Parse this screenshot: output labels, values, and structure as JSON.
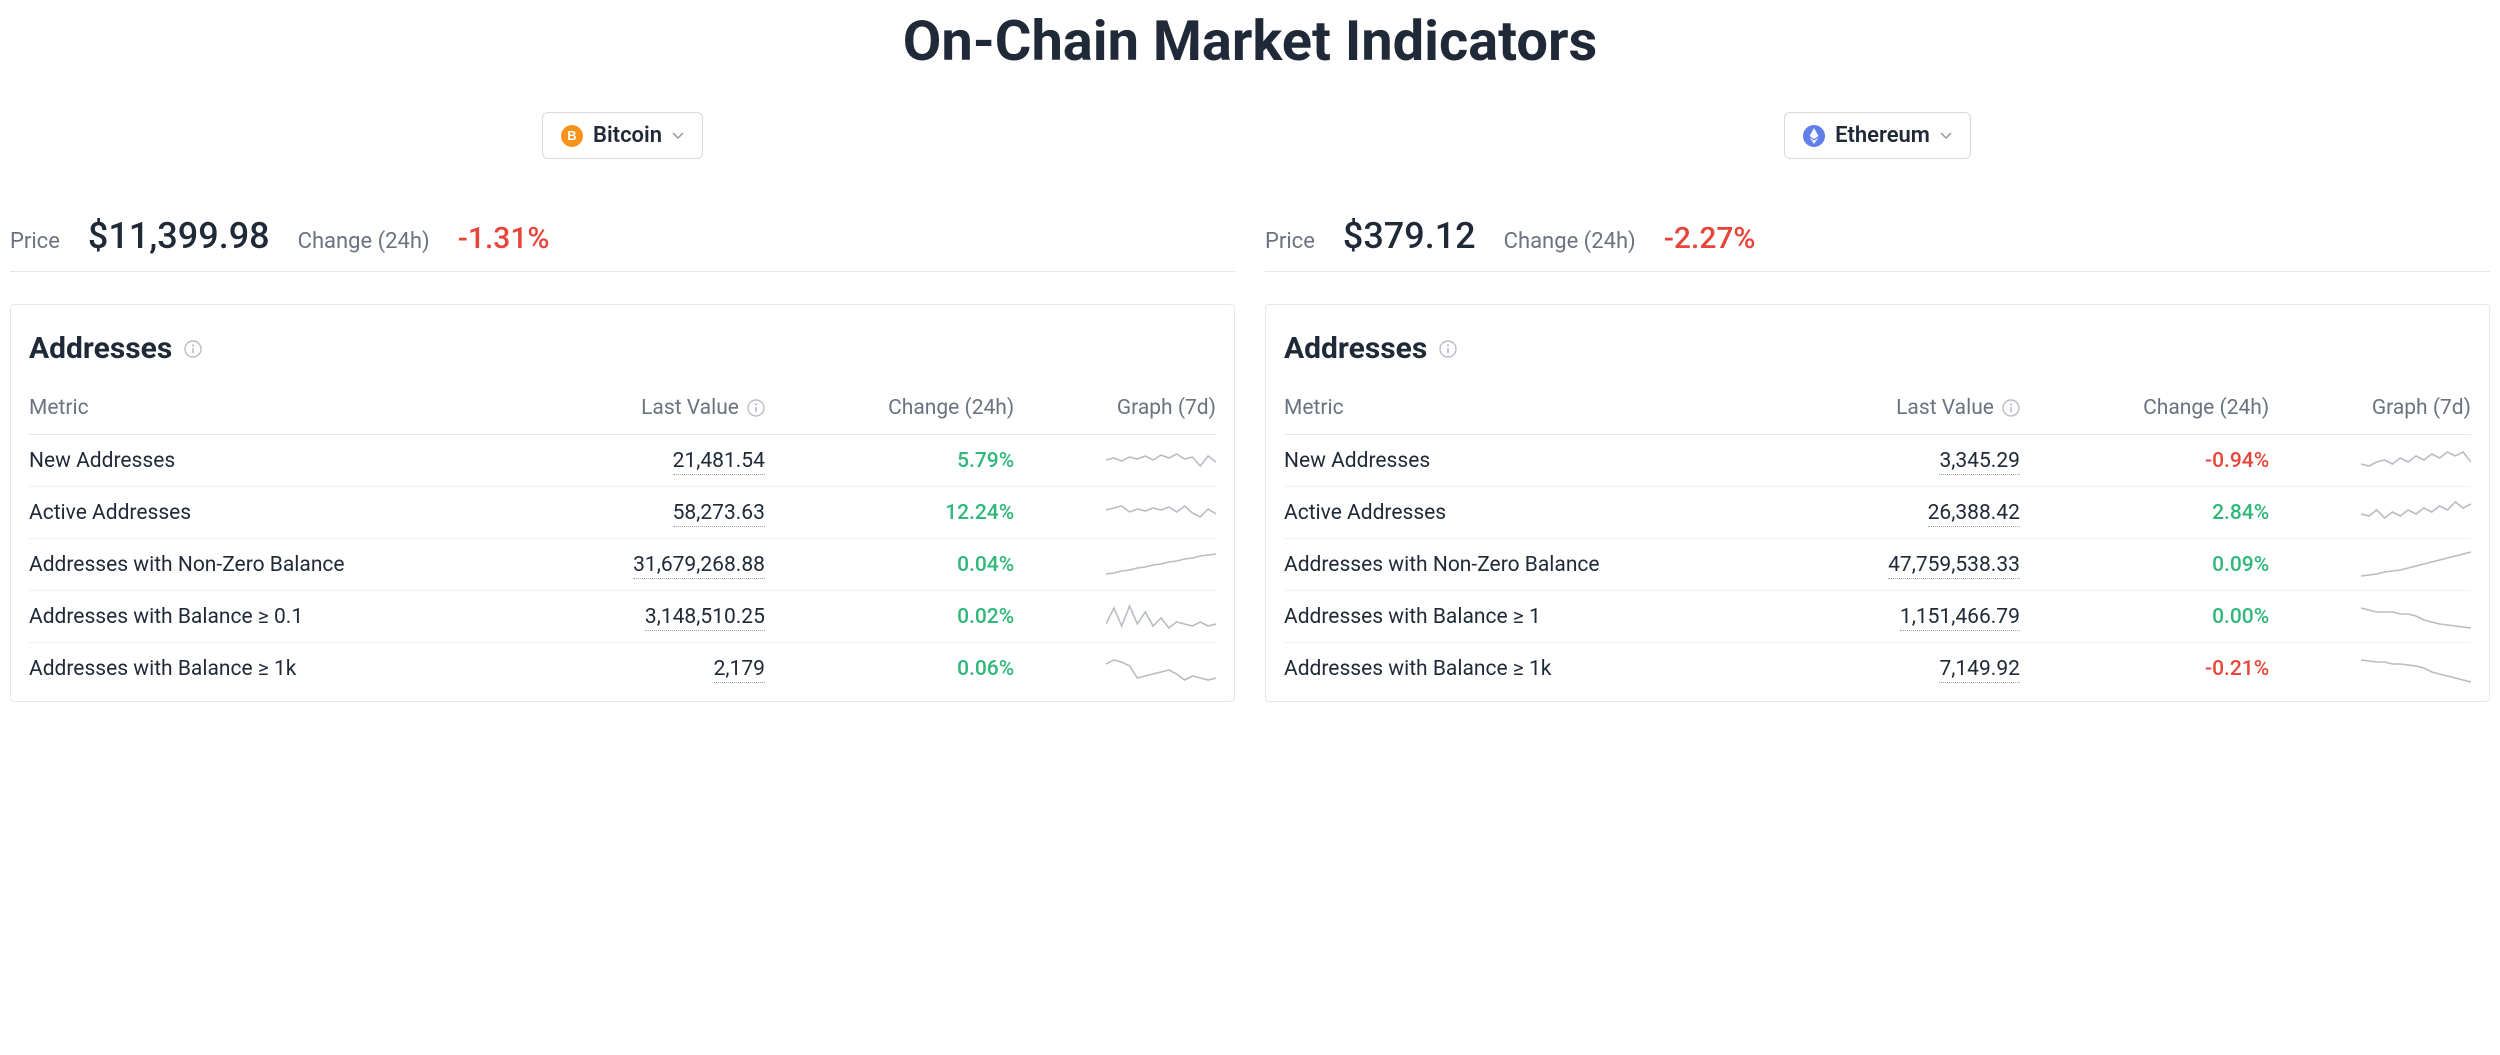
{
  "title": "On-Chain Market Indicators",
  "colors": {
    "positive": "#2fb87a",
    "negative": "#e7443a",
    "text_primary": "#1f2937",
    "text_secondary": "#6b7280",
    "border": "#e5e7eb",
    "spark_stroke": "#b8bdc4",
    "btc_icon_bg": "#f7931a",
    "eth_icon_bg": "#627eea"
  },
  "labels": {
    "price": "Price",
    "change24h": "Change (24h)"
  },
  "table_headers": {
    "metric": "Metric",
    "last_value": "Last Value",
    "change": "Change (24h)",
    "graph": "Graph (7d)"
  },
  "section": {
    "title": "Addresses"
  },
  "assets": [
    {
      "name": "Bitcoin",
      "icon_letter": "B",
      "icon_bg": "#f7931a",
      "price": "$11,399.98",
      "change24h": "-1.31%",
      "change24h_dir": "neg",
      "rows": [
        {
          "metric": "New Addresses",
          "value": "21,481.54",
          "change": "5.79%",
          "dir": "pos",
          "spark": [
            18,
            16,
            19,
            15,
            17,
            14,
            18,
            13,
            16,
            12,
            17,
            15,
            24,
            14,
            20
          ]
        },
        {
          "metric": "Active Addresses",
          "value": "58,273.63",
          "change": "12.24%",
          "dir": "pos",
          "spark": [
            16,
            14,
            12,
            18,
            15,
            17,
            14,
            16,
            13,
            18,
            12,
            19,
            23,
            15,
            20
          ]
        },
        {
          "metric": "Addresses with Non-Zero Balance",
          "value": "31,679,268.88",
          "change": "0.04%",
          "dir": "pos",
          "spark": [
            28,
            27,
            25,
            24,
            22,
            21,
            19,
            18,
            16,
            15,
            13,
            12,
            10,
            9,
            8
          ]
        },
        {
          "metric": "Addresses with Balance ≥ 0.1",
          "value": "3,148,510.25",
          "change": "0.02%",
          "dir": "pos",
          "spark": [
            26,
            10,
            28,
            8,
            26,
            14,
            28,
            20,
            30,
            24,
            26,
            28,
            24,
            28,
            26
          ]
        },
        {
          "metric": "Addresses with Balance ≥ 1k",
          "value": "2,179",
          "change": "0.06%",
          "dir": "pos",
          "spark": [
            14,
            10,
            12,
            16,
            28,
            26,
            24,
            22,
            20,
            24,
            30,
            26,
            28,
            30,
            28
          ]
        }
      ]
    },
    {
      "name": "Ethereum",
      "icon_letter": "E",
      "icon_bg": "#627eea",
      "price": "$379.12",
      "change24h": "-2.27%",
      "change24h_dir": "neg",
      "rows": [
        {
          "metric": "New Addresses",
          "value": "3,345.29",
          "change": "-0.94%",
          "dir": "neg",
          "spark": [
            22,
            24,
            20,
            18,
            22,
            16,
            20,
            14,
            18,
            12,
            16,
            10,
            14,
            10,
            20
          ]
        },
        {
          "metric": "Active Addresses",
          "value": "26,388.42",
          "change": "2.84%",
          "dir": "pos",
          "spark": [
            20,
            22,
            16,
            24,
            18,
            22,
            16,
            20,
            14,
            18,
            12,
            16,
            8,
            14,
            10
          ]
        },
        {
          "metric": "Addresses with Non-Zero Balance",
          "value": "47,759,538.33",
          "change": "0.09%",
          "dir": "pos",
          "spark": [
            30,
            29,
            28,
            26,
            25,
            24,
            22,
            20,
            18,
            16,
            14,
            12,
            10,
            8,
            6
          ]
        },
        {
          "metric": "Addresses with Balance ≥ 1",
          "value": "1,151,466.79",
          "change": "0.00%",
          "dir": "pos",
          "spark": [
            10,
            12,
            14,
            14,
            14,
            16,
            16,
            18,
            22,
            24,
            26,
            27,
            28,
            29,
            30
          ]
        },
        {
          "metric": "Addresses with Balance ≥ 1k",
          "value": "7,149.92",
          "change": "-0.21%",
          "dir": "neg",
          "spark": [
            10,
            11,
            12,
            12,
            14,
            14,
            15,
            16,
            18,
            22,
            24,
            26,
            28,
            30,
            32
          ]
        }
      ]
    }
  ]
}
